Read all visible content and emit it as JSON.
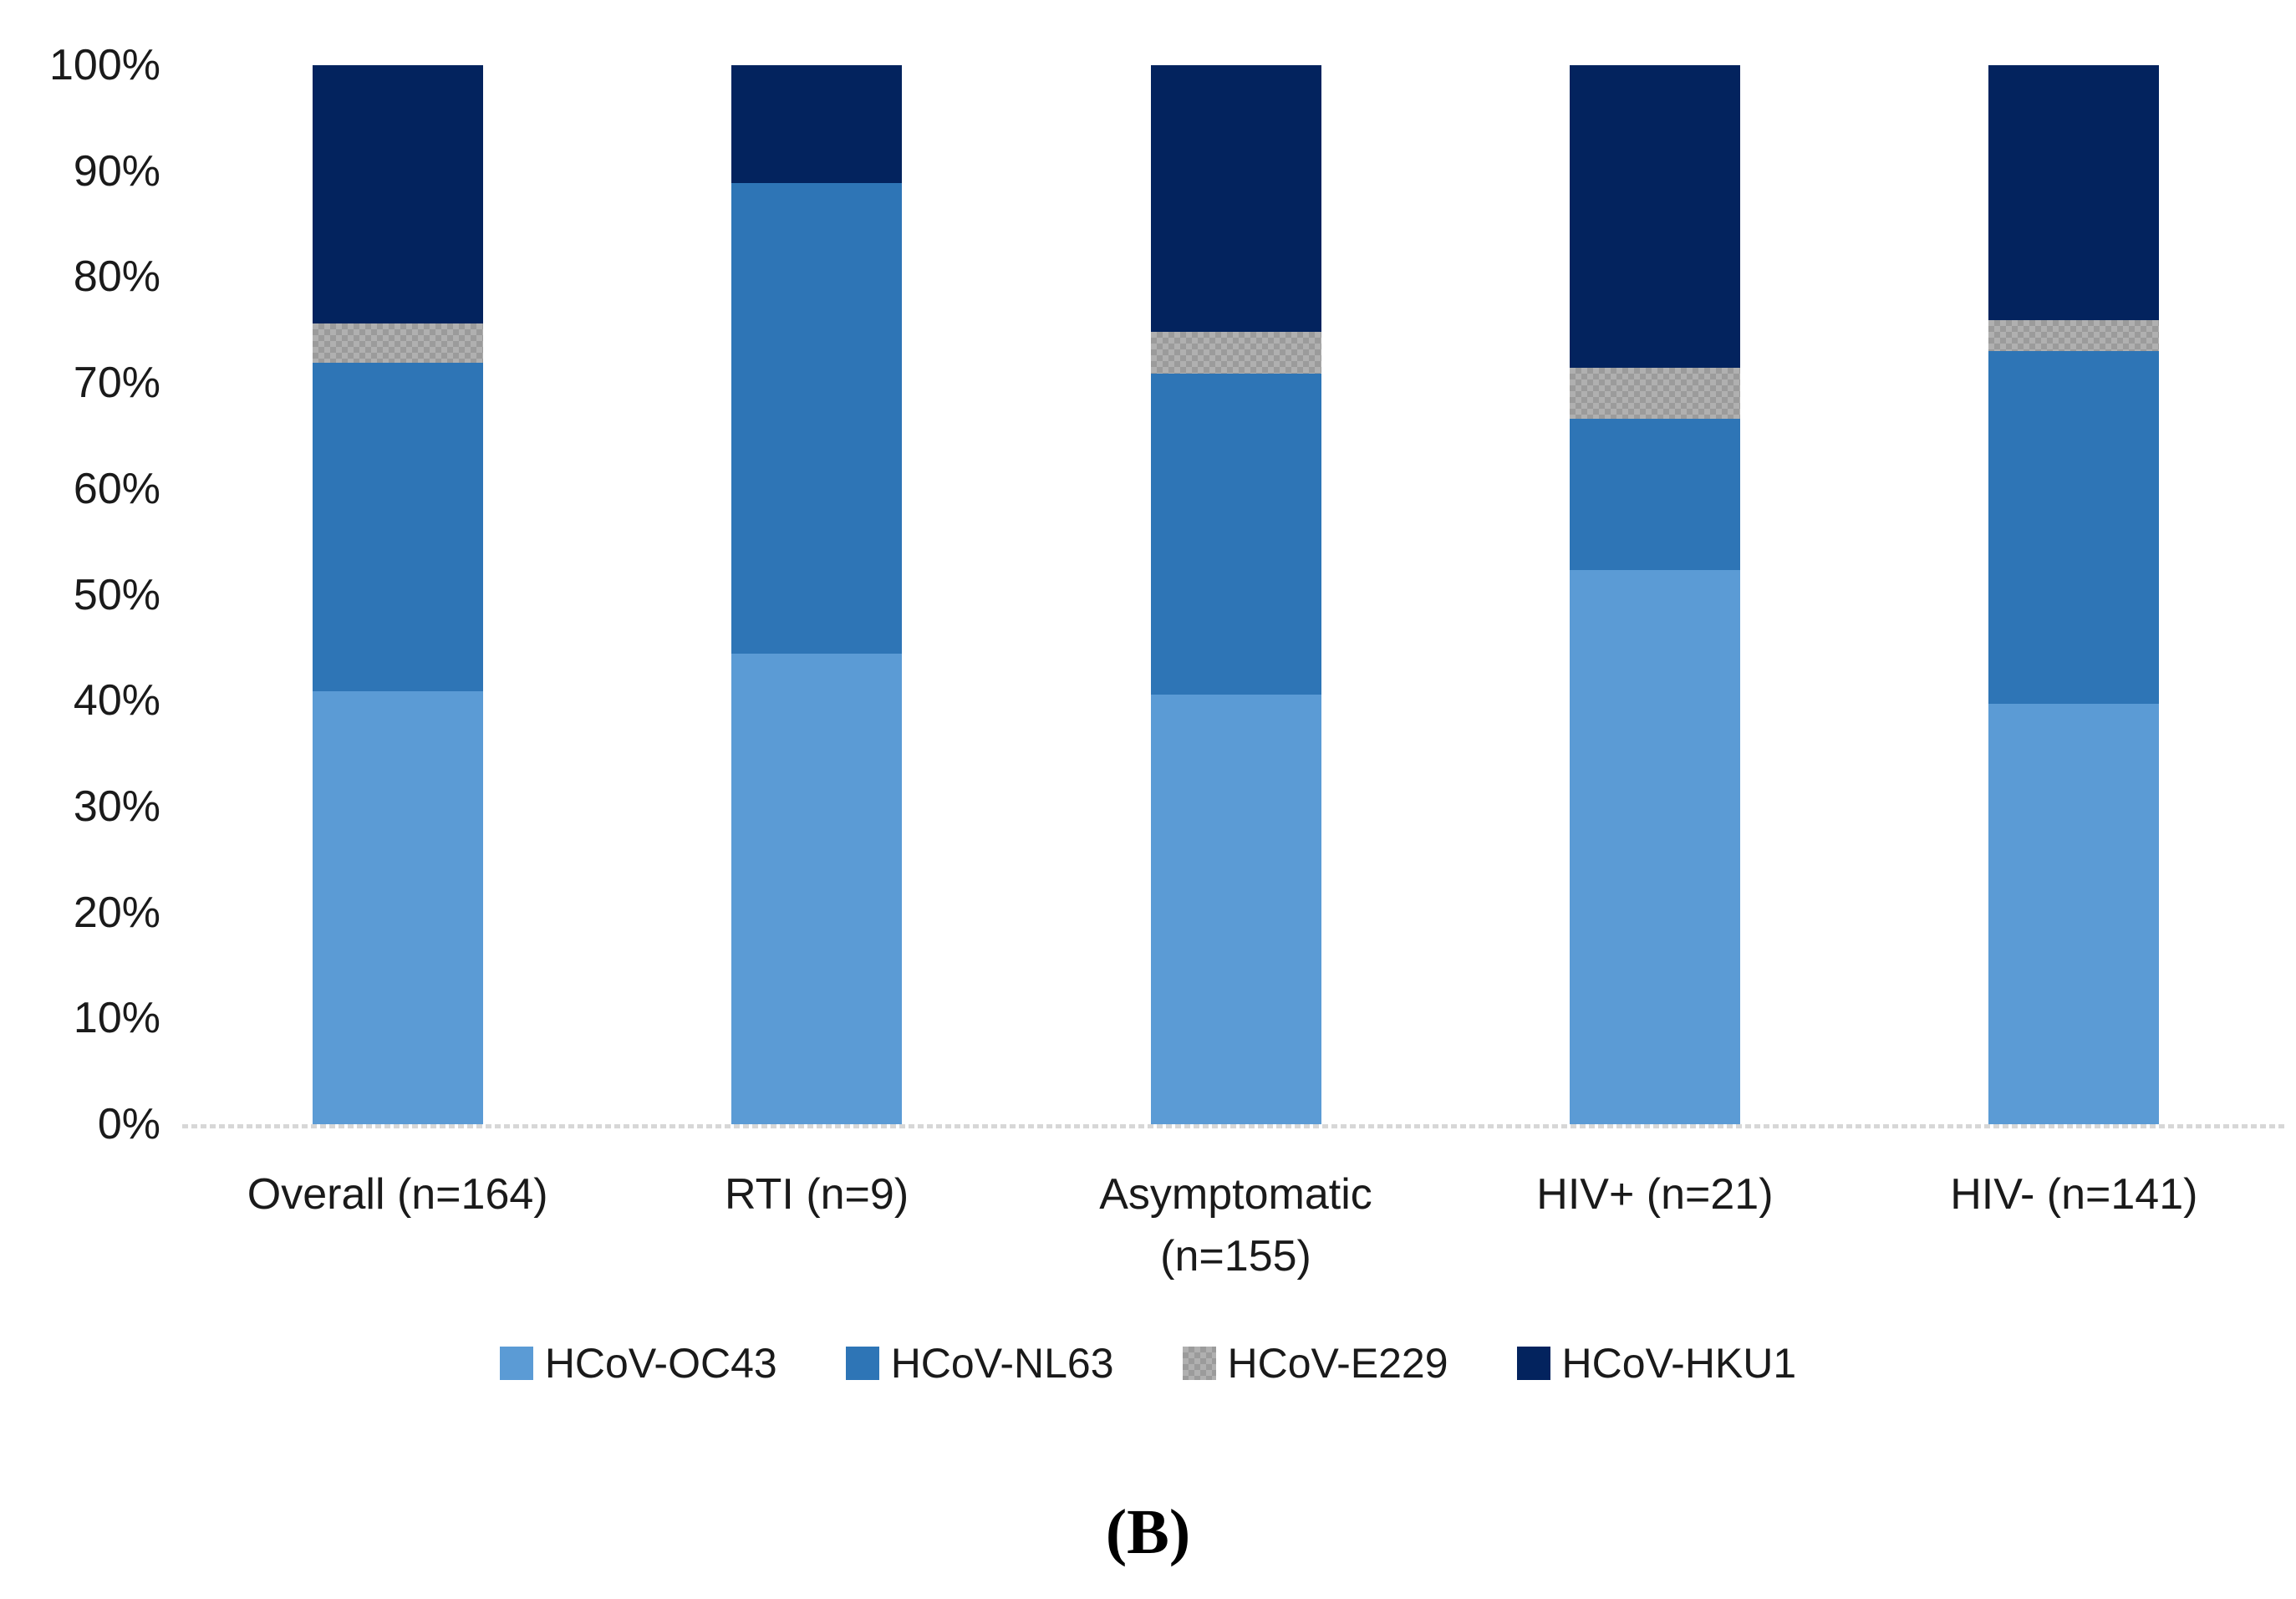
{
  "figure": {
    "panel_label": "(B)"
  },
  "colors": {
    "oc43": "#5B9BD5",
    "nl63": "#2E75B6",
    "e229": "#B0B0B0",
    "e229_dot": "#9B9B9B",
    "hku1": "#03235E",
    "axis_line": "#D7D7D7",
    "text": "#1A1A1A"
  },
  "chart_data": {
    "type": "bar",
    "subtype": "stacked-percent-column",
    "title": "",
    "xlabel": "",
    "ylabel": "",
    "ylim": [
      0,
      100
    ],
    "grid": false,
    "legend_position": "bottom",
    "y_ticks": [
      "0%",
      "10%",
      "20%",
      "30%",
      "40%",
      "50%",
      "60%",
      "70%",
      "80%",
      "90%",
      "100%"
    ],
    "categories": [
      "Overall (n=164)",
      "RTI (n=9)",
      "Asymptomatic (n=155)",
      "HIV+ (n=21)",
      "HIV- (n=141)"
    ],
    "series": [
      {
        "name": "HCoV-OC43",
        "color_key": "oc43",
        "values": [
          40.9,
          44.4,
          40.6,
          52.4,
          39.7
        ]
      },
      {
        "name": "HCoV-NL63",
        "color_key": "nl63",
        "values": [
          31.1,
          44.4,
          30.3,
          14.3,
          33.3
        ]
      },
      {
        "name": "HCoV-E229",
        "color_key": "e229",
        "values": [
          3.7,
          0.0,
          3.9,
          4.8,
          2.9
        ]
      },
      {
        "name": "HCoV-HKU1",
        "color_key": "hku1",
        "values": [
          24.4,
          11.1,
          25.2,
          28.6,
          24.1
        ]
      }
    ]
  }
}
